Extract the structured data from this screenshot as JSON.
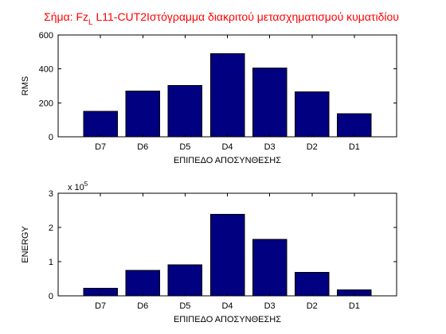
{
  "figure": {
    "title_main": "Σήμα: Fz",
    "title_sub": "L",
    "title_rest": " L11-CUT2Ιστόγραμμα διακριτού μετασχηματισμού κυματιδίου",
    "title_color": "#ff0000"
  },
  "colors": {
    "bar": "#000080",
    "axis": "#000000",
    "background": "#ffffff"
  },
  "chart_data": [
    {
      "type": "bar",
      "categories": [
        "D7",
        "D6",
        "D5",
        "D4",
        "D3",
        "D2",
        "D1"
      ],
      "values": [
        150,
        270,
        302,
        490,
        405,
        265,
        135
      ],
      "xlabel": "ΕΠΙΠΕΔΟ ΑΠΟΣΥΝΘΕΣΗΣ",
      "ylabel": "RMS",
      "ylim": [
        0,
        600
      ],
      "yticks": [
        0,
        200,
        400,
        600
      ],
      "ytick_labels": [
        "0",
        "200",
        "400",
        "600"
      ],
      "exponent_label": "",
      "grid": false
    },
    {
      "type": "bar",
      "categories": [
        "D7",
        "D6",
        "D5",
        "D4",
        "D3",
        "D2",
        "D1"
      ],
      "values": [
        0.22,
        0.74,
        0.91,
        2.38,
        1.65,
        0.69,
        0.18
      ],
      "xlabel": "ΕΠΙΠΕΔΟ ΑΠΟΣΥΝΘΕΣΗΣ",
      "ylabel": "ENERGY",
      "ylim": [
        0,
        3
      ],
      "yticks": [
        0,
        1,
        2,
        3
      ],
      "ytick_labels": [
        "0",
        "1",
        "2",
        "3"
      ],
      "exponent_label": "x 10",
      "exponent_power": "5",
      "grid": false
    }
  ]
}
